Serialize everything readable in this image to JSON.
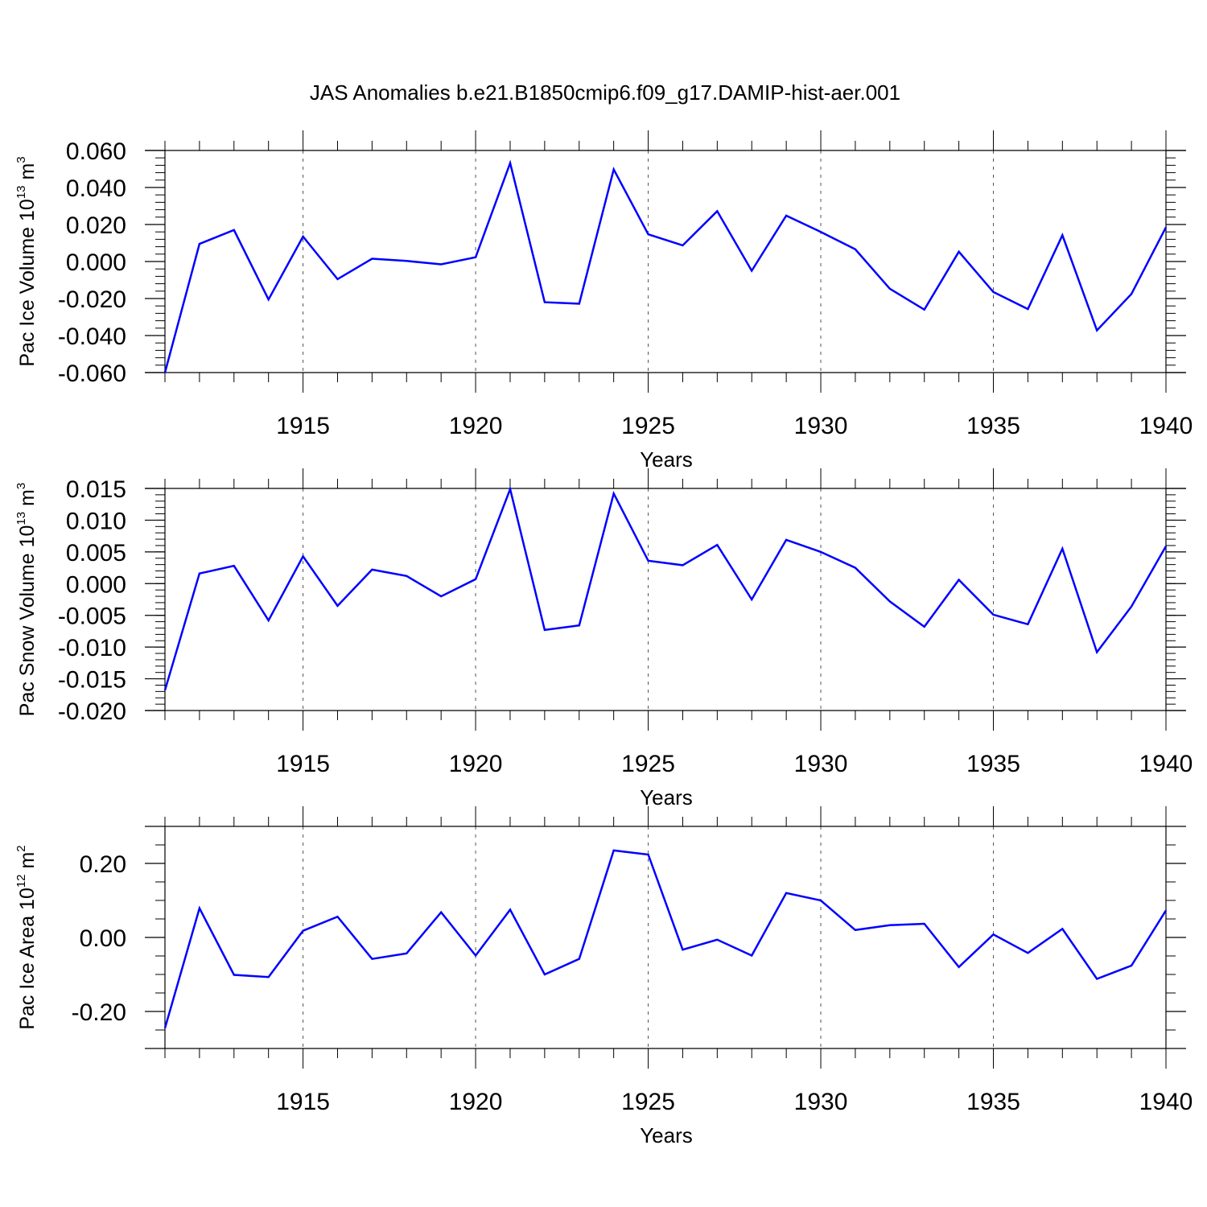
{
  "title": "JAS Anomalies b.e21.B1850cmip6.f09_g17.DAMIP-hist-aer.001",
  "colors": {
    "series": "#0000ff",
    "axis": "#000000",
    "grid": "#555555"
  },
  "chart_data": [
    {
      "type": "line",
      "name": "ice-volume",
      "ylabel": "Pac Ice Volume 10",
      "ylabel_exp": "13",
      "ylabel_unit": "m",
      "ylabel_unit_exp": "3",
      "xlabel": "Years",
      "xlim": [
        1911,
        1940
      ],
      "ylim": [
        -0.06,
        0.06
      ],
      "yticks": [
        -0.06,
        -0.04,
        -0.02,
        0.0,
        0.02,
        0.04,
        0.06
      ],
      "ytick_labels": [
        "-0.060",
        "-0.040",
        "-0.020",
        "0.000",
        "0.020",
        "0.040",
        "0.060"
      ],
      "xticks": [
        1915,
        1920,
        1925,
        1930,
        1935,
        1940
      ],
      "xtick_labels": [
        "1915",
        "1920",
        "1925",
        "1930",
        "1935",
        "1940"
      ],
      "x": [
        1911,
        1912,
        1913,
        1914,
        1915,
        1916,
        1917,
        1918,
        1919,
        1920,
        1921,
        1922,
        1923,
        1924,
        1925,
        1926,
        1927,
        1928,
        1929,
        1930,
        1931,
        1932,
        1933,
        1934,
        1935,
        1936,
        1937,
        1938,
        1939,
        1940
      ],
      "values": [
        -0.06,
        0.0095,
        0.017,
        -0.0205,
        0.0135,
        -0.0095,
        0.0015,
        0.0003,
        -0.0015,
        0.0023,
        0.0532,
        -0.022,
        -0.0228,
        0.0498,
        0.0147,
        0.0087,
        0.0272,
        -0.005,
        0.0248,
        0.016,
        0.0066,
        -0.0147,
        -0.026,
        0.0053,
        -0.0165,
        -0.0257,
        0.0142,
        -0.0372,
        -0.0175,
        0.0185
      ]
    },
    {
      "type": "line",
      "name": "snow-volume",
      "ylabel": "Pac Snow Volume 10",
      "ylabel_exp": "13",
      "ylabel_unit": "m",
      "ylabel_unit_exp": "3",
      "xlabel": "Years",
      "xlim": [
        1911,
        1940
      ],
      "ylim": [
        -0.02,
        0.015
      ],
      "yticks": [
        -0.02,
        -0.015,
        -0.01,
        -0.005,
        0.0,
        0.005,
        0.01,
        0.015
      ],
      "ytick_labels": [
        "-0.020",
        "-0.015",
        "-0.010",
        "-0.005",
        "0.000",
        "0.005",
        "0.010",
        "0.015"
      ],
      "xticks": [
        1915,
        1920,
        1925,
        1930,
        1935,
        1940
      ],
      "xtick_labels": [
        "1915",
        "1920",
        "1925",
        "1930",
        "1935",
        "1940"
      ],
      "x": [
        1911,
        1912,
        1913,
        1914,
        1915,
        1916,
        1917,
        1918,
        1919,
        1920,
        1921,
        1922,
        1923,
        1924,
        1925,
        1926,
        1927,
        1928,
        1929,
        1930,
        1931,
        1932,
        1933,
        1934,
        1935,
        1936,
        1937,
        1938,
        1939,
        1940
      ],
      "values": [
        -0.0168,
        0.0016,
        0.0028,
        -0.0058,
        0.0043,
        -0.0035,
        0.0022,
        0.0012,
        -0.002,
        0.0007,
        0.0149,
        -0.0073,
        -0.0066,
        0.0142,
        0.0036,
        0.0029,
        0.0061,
        -0.0025,
        0.0069,
        0.005,
        0.0025,
        -0.0028,
        -0.0068,
        0.0006,
        -0.0049,
        -0.0064,
        0.0055,
        -0.0108,
        -0.0036,
        0.0059
      ]
    },
    {
      "type": "line",
      "name": "ice-area",
      "ylabel": "Pac Ice Area 10",
      "ylabel_exp": "12",
      "ylabel_unit": "m",
      "ylabel_unit_exp": "2",
      "xlabel": "Years",
      "xlim": [
        1911,
        1940
      ],
      "ylim": [
        -0.3,
        0.3
      ],
      "yticks": [
        -0.2,
        0.0,
        0.2
      ],
      "ytick_labels": [
        "-0.20",
        "0.00",
        "0.20"
      ],
      "minor_step": 0.05,
      "xticks": [
        1915,
        1920,
        1925,
        1930,
        1935,
        1940
      ],
      "xtick_labels": [
        "1915",
        "1920",
        "1925",
        "1930",
        "1935",
        "1940"
      ],
      "x": [
        1911,
        1912,
        1913,
        1914,
        1915,
        1916,
        1917,
        1918,
        1919,
        1920,
        1921,
        1922,
        1923,
        1924,
        1925,
        1926,
        1927,
        1928,
        1929,
        1930,
        1931,
        1932,
        1933,
        1934,
        1935,
        1936,
        1937,
        1938,
        1939,
        1940
      ],
      "values": [
        -0.245,
        0.079,
        -0.101,
        -0.107,
        0.018,
        0.056,
        -0.058,
        -0.043,
        0.068,
        -0.049,
        0.075,
        -0.1,
        -0.058,
        0.235,
        0.224,
        -0.033,
        -0.006,
        -0.049,
        0.12,
        0.1,
        0.02,
        0.033,
        0.037,
        -0.08,
        0.008,
        -0.042,
        0.023,
        -0.112,
        -0.076,
        0.073
      ]
    }
  ]
}
